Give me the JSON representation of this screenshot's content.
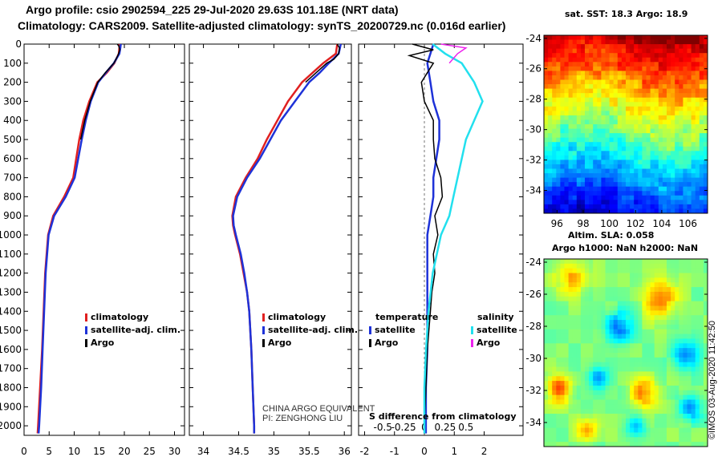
{
  "header": {
    "line1": "Argo profile: csio 2902594_225 29-Jul-2020 29.63S 101.18E (NRT data)",
    "line2": "Climatology: CARS2009. Satellite-adjusted climatology: synTS_20200729.nc (0.016d earlier)"
  },
  "depth_ticks": [
    0,
    100,
    200,
    300,
    400,
    500,
    600,
    700,
    800,
    900,
    1000,
    1100,
    1200,
    1300,
    1400,
    1500,
    1600,
    1700,
    1800,
    1900,
    2000
  ],
  "colors": {
    "climatology": "#e02020",
    "satellite": "#1e32d8",
    "argo": "#000000",
    "sal_satellite": "#22e0ee",
    "sal_argo": "#ee22ee"
  },
  "chart_data": [
    {
      "type": "line",
      "name": "temperature",
      "xlim": [
        0,
        32
      ],
      "ylim": [
        2050,
        0
      ],
      "x_ticks": [
        0,
        5,
        10,
        15,
        20,
        25,
        30
      ],
      "legend": [
        "climatology",
        "satellite-adj. clim.",
        "Argo"
      ],
      "series": [
        {
          "name": "climatology",
          "depth": [
            0,
            20,
            50,
            100,
            150,
            200,
            300,
            400,
            500,
            600,
            700,
            800,
            900,
            1000,
            1200,
            1400,
            1600,
            1800,
            2000,
            2040
          ],
          "values": [
            19.0,
            19.0,
            18.9,
            18.0,
            16.5,
            14.6,
            13.0,
            11.8,
            11.0,
            10.4,
            9.8,
            8.0,
            5.8,
            4.8,
            4.2,
            3.9,
            3.6,
            3.2,
            2.8,
            2.7
          ]
        },
        {
          "name": "satellite-adj. clim.",
          "depth": [
            0,
            20,
            50,
            100,
            150,
            200,
            300,
            400,
            500,
            600,
            700,
            800,
            900,
            1000,
            1200,
            1400,
            1600,
            1800,
            2000,
            2040
          ],
          "values": [
            19.3,
            19.2,
            19.0,
            17.9,
            16.3,
            14.8,
            13.3,
            12.3,
            11.5,
            10.8,
            10.1,
            8.3,
            6.0,
            4.9,
            4.3,
            4.0,
            3.7,
            3.4,
            3.0,
            2.9
          ]
        },
        {
          "name": "Argo",
          "depth": [
            0,
            10,
            30,
            60,
            100,
            150,
            200,
            300,
            400,
            500
          ],
          "values": [
            18.6,
            18.9,
            19.1,
            18.7,
            17.9,
            16.2,
            14.7,
            13.2,
            12.1,
            11.3
          ]
        }
      ]
    },
    {
      "type": "line",
      "name": "salinity",
      "xlim": [
        33.8,
        36.1
      ],
      "ylim": [
        2050,
        0
      ],
      "x_ticks": [
        34,
        34.5,
        35,
        35.5,
        36
      ],
      "x_tick_labels": [
        "34",
        "34.5",
        "35",
        "35.5",
        "36"
      ],
      "legend": [
        "climatology",
        "satellite-adj. clim.",
        "Argo"
      ],
      "series": [
        {
          "name": "climatology",
          "depth": [
            0,
            50,
            100,
            150,
            200,
            300,
            400,
            500,
            600,
            700,
            800,
            900,
            950,
            1000,
            1100,
            1200,
            1300,
            1400,
            1600,
            1800,
            2000,
            2040
          ],
          "values": [
            35.9,
            35.88,
            35.7,
            35.55,
            35.4,
            35.2,
            35.05,
            34.9,
            34.77,
            34.6,
            34.46,
            34.41,
            34.42,
            34.45,
            34.52,
            34.57,
            34.62,
            34.65,
            34.68,
            34.7,
            34.72,
            34.72
          ]
        },
        {
          "name": "satellite-adj. clim.",
          "depth": [
            0,
            50,
            100,
            150,
            200,
            300,
            400,
            500,
            600,
            700,
            800,
            900,
            950,
            1000,
            1100,
            1200,
            1300,
            1400,
            1600,
            1800,
            2000,
            2040
          ],
          "values": [
            35.95,
            35.92,
            35.78,
            35.65,
            35.5,
            35.3,
            35.1,
            34.95,
            34.8,
            34.62,
            34.48,
            34.42,
            34.43,
            34.46,
            34.53,
            34.58,
            34.62,
            34.65,
            34.68,
            34.7,
            34.72,
            34.72
          ]
        },
        {
          "name": "Argo",
          "depth": [
            0,
            20,
            50,
            80,
            100,
            150,
            200
          ],
          "values": [
            35.9,
            35.93,
            35.92,
            35.85,
            35.75,
            35.6,
            35.45
          ]
        }
      ]
    },
    {
      "type": "line",
      "name": "difference",
      "xlim": [
        -2.2,
        3.3
      ],
      "ylim": [
        2050,
        0
      ],
      "x_ticks": [
        -2,
        -1,
        0,
        1,
        2
      ],
      "x_tick_labels": [
        "-2",
        "-1",
        "0",
        "1",
        "2"
      ],
      "s_ticks": [
        -0.5,
        -0.25,
        0,
        0.25,
        0.5
      ],
      "s_tick_labels": [
        "-0.5",
        "-0.25",
        "0",
        "0.25",
        "0.5"
      ],
      "xlabel": "S difference from climatology",
      "legend_temperature": {
        "title": "temperature",
        "items": [
          "satellite",
          "Argo"
        ]
      },
      "legend_salinity": {
        "title": "salinity",
        "items": [
          "satellite",
          "Argo"
        ]
      },
      "series": [
        {
          "name": "temperature satellite",
          "depth": [
            0,
            50,
            100,
            200,
            300,
            400,
            500,
            600,
            700,
            800,
            900,
            1000,
            1200,
            1400,
            1600,
            1800,
            2000,
            2040
          ],
          "values": [
            0.3,
            0.2,
            0.1,
            0.2,
            0.3,
            0.5,
            0.5,
            0.4,
            0.3,
            0.3,
            0.2,
            0.1,
            0.1,
            0.1,
            0.1,
            0.05,
            0.05,
            0.05
          ]
        },
        {
          "name": "temperature Argo",
          "depth": [
            0,
            30,
            60,
            100,
            150,
            200,
            300,
            400,
            500,
            600,
            700,
            800,
            900,
            1000,
            1100,
            1200,
            1300,
            1400,
            1500,
            1600,
            1800,
            2000,
            2040
          ],
          "values": [
            -0.4,
            0.3,
            -0.5,
            0.3,
            0.1,
            -0.1,
            0.0,
            0.3,
            0.3,
            0.35,
            0.55,
            0.6,
            0.35,
            0.45,
            0.3,
            0.35,
            0.25,
            0.2,
            0.15,
            0.1,
            0.05,
            0.0,
            0.0
          ]
        },
        {
          "name": "salinity satellite",
          "depth": [
            0,
            50,
            100,
            200,
            300,
            400,
            500,
            600,
            700,
            800,
            900,
            1000,
            1200,
            1400,
            1600,
            1800,
            2000,
            2040
          ],
          "values": [
            0.1,
            0.25,
            0.45,
            0.6,
            0.7,
            0.6,
            0.5,
            0.45,
            0.4,
            0.35,
            0.3,
            0.2,
            0.1,
            0.05,
            0.02,
            0.0,
            0.0,
            0.0
          ]
        },
        {
          "name": "salinity Argo",
          "depth": [
            0,
            20,
            50,
            100
          ],
          "values": [
            0.2,
            0.5,
            0.4,
            0.3
          ]
        }
      ]
    },
    {
      "type": "heatmap",
      "name": "sat-sst-map",
      "title": "sat.  SST: 18.3 Argo: 18.9",
      "x_ticks": [
        96,
        98,
        100,
        102,
        104,
        106
      ],
      "y_ticks": [
        -24,
        -26,
        -28,
        -30,
        -32,
        -34
      ],
      "xlim": [
        95,
        107.5
      ],
      "ylim": [
        -35.5,
        -23.8
      ],
      "colormap": "jet",
      "value_range": [
        14,
        22
      ]
    },
    {
      "type": "heatmap",
      "name": "altim-sla-map",
      "title": "Altim. SLA: 0.058",
      "subtitle": "Argo h1000: NaN h2000: NaN",
      "y_ticks": [
        -24,
        -26,
        -28,
        -30,
        -32,
        -34
      ],
      "xlim": [
        95,
        107.5
      ],
      "ylim": [
        -35.5,
        -23.8
      ],
      "colormap": "jet"
    }
  ],
  "credit": "©IMOS 03-Aug-2020 11:42:50",
  "pi_line1": "CHINA ARGO EQUIVALENT",
  "pi_line2": "PI: ZENGHONG LIU"
}
